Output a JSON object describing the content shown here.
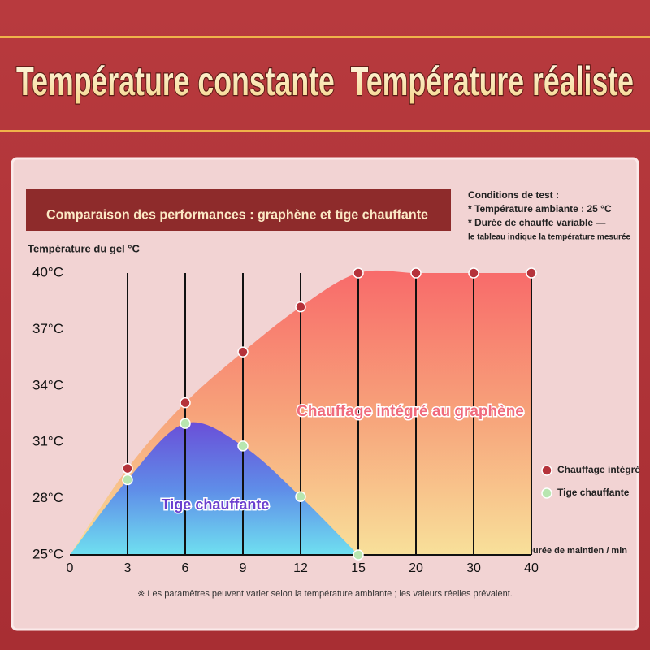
{
  "chart_data": {
    "type": "area",
    "title": "Température constante  Température réaliste",
    "subtitle": "Comparaison des performances : graphène et tige chauffante",
    "conditions": [
      "Conditions de test :",
      "* Température ambiante : 25 °C",
      "* Durée de chauffe variable —",
      "le tableau indique la température mesurée"
    ],
    "ylabel": "Température du gel °C",
    "xlabel": "Durée de maintien / min",
    "note": "※ Les paramètres peuvent varier selon la température ambiante ; les valeurs réelles prévalent.",
    "categories": [
      "0",
      "3",
      "6",
      "9",
      "12",
      "15",
      "20",
      "30",
      "40"
    ],
    "series": [
      {
        "name": "Chauffage intégré",
        "color": "#b5323a",
        "label": "Chauffage intégré au graphène",
        "values": [
          null,
          29.6,
          33.1,
          35.8,
          38.2,
          40,
          40,
          40,
          40
        ]
      },
      {
        "name": "Tige chauffante",
        "color": "#b8e6b0",
        "label": "Tige chauffante",
        "values": [
          null,
          29,
          32,
          30.8,
          28.1,
          25,
          null,
          null,
          null
        ]
      }
    ],
    "ylim": [
      25,
      40
    ],
    "yticks": [
      {
        "value": 25,
        "label": "25°C"
      },
      {
        "value": 28,
        "label": "28°C"
      },
      {
        "value": 31,
        "label": "31°C"
      },
      {
        "value": 34,
        "label": "34°C"
      },
      {
        "value": 37,
        "label": "37°C"
      },
      {
        "value": 40,
        "label": "40°C"
      }
    ],
    "grid": true
  }
}
